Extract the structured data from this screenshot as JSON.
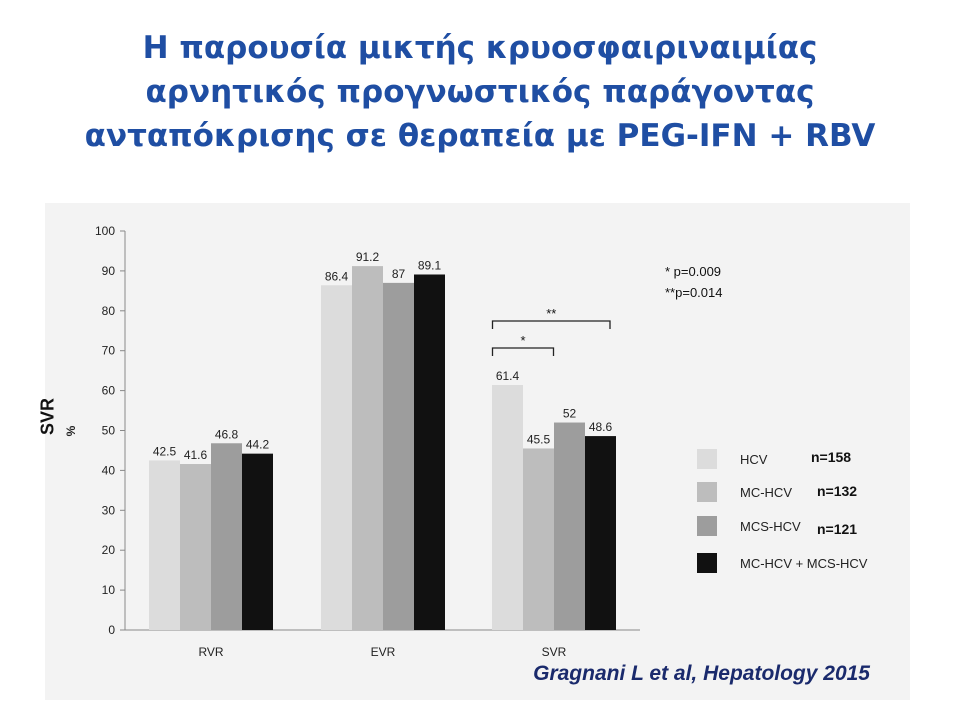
{
  "title": {
    "lines": [
      "Η παρουσία μικτής κρυοσφαιριναιμίας",
      "αρνητικός προγνωστικός παράγοντας",
      "ανταπόκρισης σε θεραπεία με PEG-IFN + RBV"
    ]
  },
  "side_label": "SVR",
  "citation": "Gragnani L et al, Hepatology 2015",
  "colors": {
    "title": "#1f4ea3",
    "panel": "#f3f3f3",
    "series": [
      "#dcdcdc",
      "#bdbdbd",
      "#9d9d9d",
      "#111111"
    ]
  },
  "chart_data": {
    "type": "bar",
    "categories": [
      "RVR",
      "EVR",
      "SVR"
    ],
    "ylabel": "%",
    "ylim": [
      0,
      100
    ],
    "yticks": [
      0,
      10,
      20,
      30,
      40,
      50,
      60,
      70,
      80,
      90,
      100
    ],
    "grid": false,
    "legend_position": "right",
    "series": [
      {
        "name": "HCV",
        "n_label": "n=158",
        "values": [
          42.5,
          86.4,
          61.4
        ],
        "labels": [
          "42.5",
          "86.4",
          "61.4"
        ]
      },
      {
        "name": "MC-HCV",
        "n_label": "n=132",
        "values": [
          41.6,
          91.2,
          45.5
        ],
        "labels": [
          "41.6",
          "91.2",
          "45.5"
        ]
      },
      {
        "name": "MCS-HCV",
        "n_label": "n=121",
        "values": [
          46.8,
          87,
          52
        ],
        "labels": [
          "46.8",
          "87",
          "52"
        ]
      },
      {
        "name": "MC-HCV + MCS-HCV",
        "n_label": "",
        "values": [
          44.2,
          89.1,
          48.6
        ],
        "labels": [
          "44.2",
          "89.1",
          "48.6"
        ]
      }
    ],
    "annotations": {
      "p_values": [
        {
          "mark": "*",
          "text": "* p=0.009"
        },
        {
          "mark": "**",
          "text": "**p=0.014"
        }
      ]
    }
  }
}
